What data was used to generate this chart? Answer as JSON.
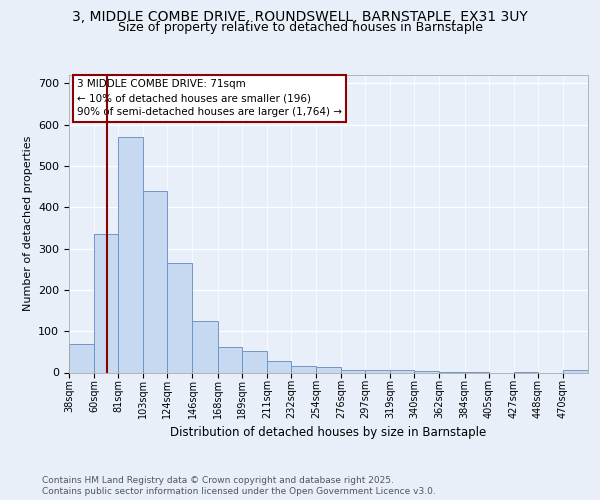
{
  "title1": "3, MIDDLE COMBE DRIVE, ROUNDSWELL, BARNSTAPLE, EX31 3UY",
  "title2": "Size of property relative to detached houses in Barnstaple",
  "xlabel": "Distribution of detached houses by size in Barnstaple",
  "ylabel": "Number of detached properties",
  "bin_labels": [
    "38sqm",
    "60sqm",
    "81sqm",
    "103sqm",
    "124sqm",
    "146sqm",
    "168sqm",
    "189sqm",
    "211sqm",
    "232sqm",
    "254sqm",
    "276sqm",
    "297sqm",
    "319sqm",
    "340sqm",
    "362sqm",
    "384sqm",
    "405sqm",
    "427sqm",
    "448sqm",
    "470sqm"
  ],
  "bin_edges": [
    38,
    60,
    81,
    103,
    124,
    146,
    168,
    189,
    211,
    232,
    254,
    276,
    297,
    319,
    340,
    362,
    384,
    405,
    427,
    448,
    470
  ],
  "bar_heights": [
    70,
    335,
    570,
    440,
    265,
    125,
    62,
    52,
    28,
    16,
    14,
    5,
    6,
    5,
    3,
    1,
    1,
    0,
    1,
    0,
    5
  ],
  "bar_color": "#c6d9f1",
  "bar_edgecolor": "#7096c8",
  "ylim": [
    0,
    720
  ],
  "yticks": [
    0,
    100,
    200,
    300,
    400,
    500,
    600,
    700
  ],
  "red_line_x": 71,
  "annotation_title": "3 MIDDLE COMBE DRIVE: 71sqm",
  "annotation_line1": "← 10% of detached houses are smaller (196)",
  "annotation_line2": "90% of semi-detached houses are larger (1,764) →",
  "footer1": "Contains HM Land Registry data © Crown copyright and database right 2025.",
  "footer2": "Contains public sector information licensed under the Open Government Licence v3.0.",
  "bg_color": "#e8eff9",
  "plot_bg_color": "#e8eff9",
  "title_fontsize": 10,
  "subtitle_fontsize": 9
}
